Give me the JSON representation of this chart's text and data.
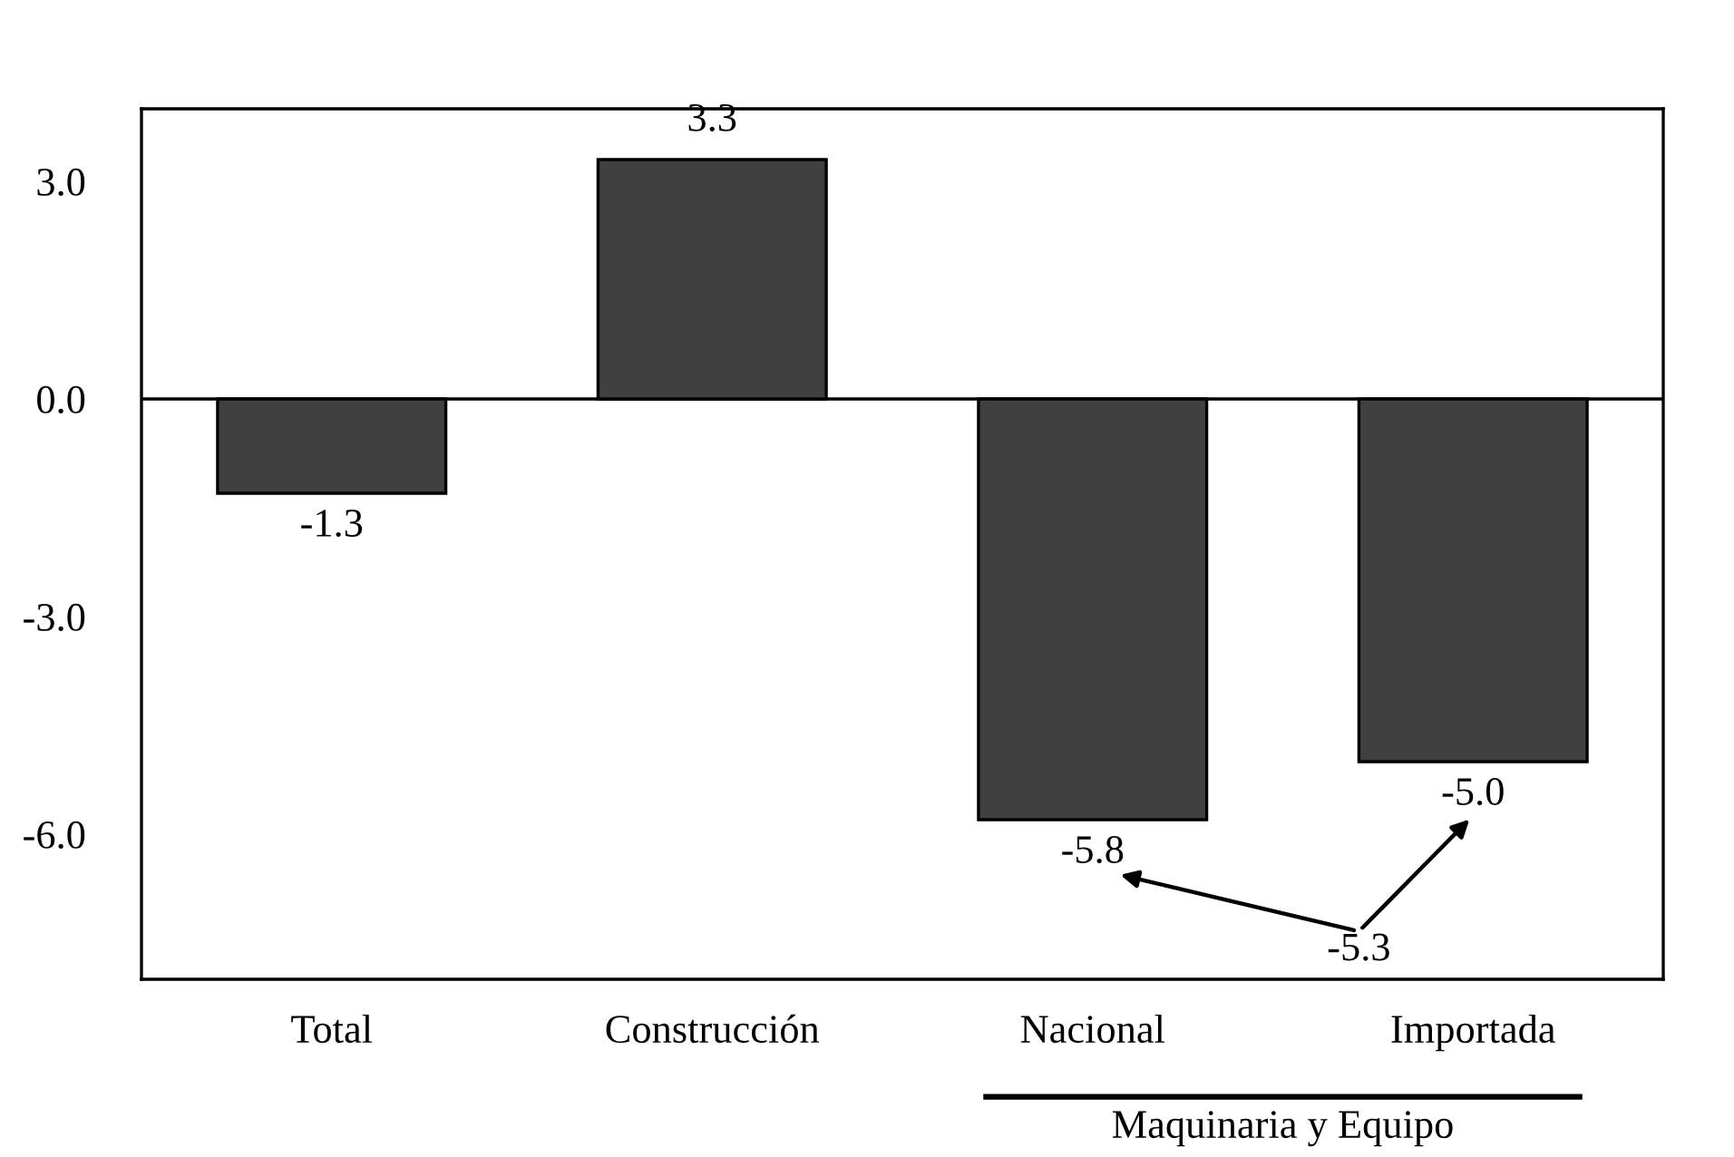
{
  "chart_data": {
    "type": "bar",
    "categories": [
      "Total",
      "Construcción",
      "Nacional",
      "Importada"
    ],
    "values": [
      -1.3,
      3.3,
      -5.8,
      -5.0
    ],
    "value_labels": [
      "-1.3",
      "3.3",
      "-5.8",
      "-5.0"
    ],
    "color": "#404040",
    "ylim": [
      -8,
      4
    ],
    "yticks": [
      {
        "value": 3,
        "label": "3.0"
      },
      {
        "value": 0,
        "label": "0.0"
      },
      {
        "value": -3,
        "label": "-3.0"
      },
      {
        "value": -6,
        "label": "-6.0"
      }
    ],
    "ref_lines": [
      {
        "axis": "y",
        "value": 0,
        "color": "#000000"
      }
    ],
    "annotations": [
      "-5.3",
      "Maquinaria y Equipo"
    ],
    "grid": false
  }
}
